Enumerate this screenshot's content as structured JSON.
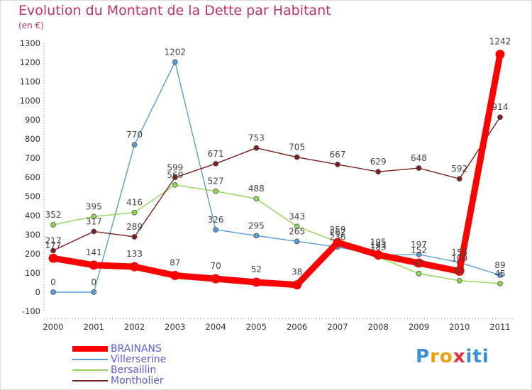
{
  "title": "Evolution du Montant de la Dette par Habitant",
  "subtitle": "(en €)",
  "logo": {
    "letters": [
      "P",
      "r",
      "o",
      "x",
      "i",
      "t",
      "i"
    ],
    "colors": [
      "#3b8fd9",
      "#e8a30c",
      "#e8a30c",
      "#e0303a",
      "#3b8fd9",
      "#3b8fd9",
      "#3b8fd9"
    ]
  },
  "chart_data": {
    "type": "line",
    "title": "Evolution du Montant de la Dette par Habitant",
    "ylabel": "(en €)",
    "x": [
      "2000",
      "2001",
      "2002",
      "2003",
      "2004",
      "2005",
      "2006",
      "2007",
      "2008",
      "2009",
      "2010",
      "2011"
    ],
    "ylim": [
      -100,
      1300
    ],
    "yticks": [
      -100,
      0,
      100,
      200,
      300,
      400,
      500,
      600,
      700,
      800,
      900,
      1000,
      1100,
      1200,
      1300
    ],
    "grid": false,
    "legend_position": "bottom-left",
    "series": [
      {
        "name": "BRAINANS",
        "color": "#ff0000",
        "values": [
          177,
          141,
          133,
          87,
          70,
          52,
          38,
          259,
          195,
          152,
          109,
          1242
        ],
        "labels": [
          "177",
          "141",
          "133",
          "87",
          "70",
          "52",
          "38",
          "259",
          "195",
          "152",
          "109",
          "1242"
        ]
      },
      {
        "name": "Villerserine",
        "color": "#5b9bd5",
        "values": [
          0,
          0,
          770,
          1202,
          326,
          295,
          265,
          236,
          193,
          197,
          155,
          89
        ],
        "labels": [
          "0",
          "0",
          "770",
          "1202",
          "326",
          "295",
          "265",
          "236",
          "193",
          "197",
          "155",
          "89"
        ]
      },
      {
        "name": "Bersaillin",
        "color": "#8ed653",
        "values": [
          352,
          395,
          416,
          560,
          527,
          488,
          343,
          262,
          183,
          97,
          60,
          45
        ],
        "labels": [
          "352",
          "395",
          "416",
          "560",
          "527",
          "488",
          "343",
          "262",
          "183",
          "97",
          "60",
          "45"
        ]
      },
      {
        "name": "Montholier",
        "color": "#7b1e1e",
        "values": [
          217,
          317,
          289,
          599,
          671,
          753,
          705,
          667,
          629,
          648,
          592,
          914
        ],
        "labels": [
          "217",
          "317",
          "289",
          "599",
          "671",
          "753",
          "705",
          "667",
          "629",
          "648",
          "592",
          "914"
        ]
      }
    ]
  }
}
